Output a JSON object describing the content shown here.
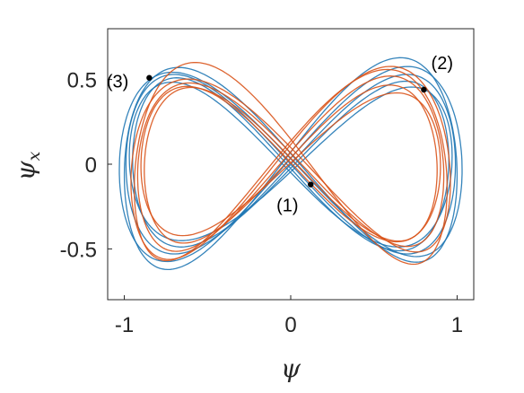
{
  "chart_data": {
    "type": "line",
    "title": "",
    "xlabel": "ψ",
    "ylabel": {
      "main": "ψ",
      "sub": "x"
    },
    "xlim": [
      -1.1,
      1.1
    ],
    "ylim": [
      -0.8,
      0.8
    ],
    "xticks": [
      {
        "value": -1,
        "label": "-1"
      },
      {
        "value": 0,
        "label": "0"
      },
      {
        "value": 1,
        "label": "1"
      }
    ],
    "yticks": [
      {
        "value": -0.5,
        "label": "-0.5"
      },
      {
        "value": 0,
        "label": "0"
      },
      {
        "value": 0.5,
        "label": "0.5"
      }
    ],
    "grid": false,
    "legend": "none",
    "colors": {
      "blue": "#1f77b4",
      "orange": "#d95319",
      "axes": "#262626",
      "marker": "#000000"
    },
    "series": [
      {
        "color": "blue",
        "loops": [
          {
            "cx": 0,
            "r": 0.99,
            "rx": 0.53,
            "phase": 0.0,
            "gain": 0.0
          },
          {
            "cx": 0,
            "r": 1.03,
            "rx": 0.56,
            "phase": 0.15,
            "gain": 0.04
          },
          {
            "cx": 0,
            "r": 0.95,
            "rx": 0.5,
            "phase": -0.12,
            "gain": -0.03
          },
          {
            "cx": 0,
            "r": 1.0,
            "rx": 0.6,
            "phase": 0.28,
            "gain": 0.06
          },
          {
            "cx": 0,
            "r": 0.97,
            "rx": 0.47,
            "phase": -0.25,
            "gain": -0.05
          }
        ]
      },
      {
        "color": "orange",
        "loops": [
          {
            "cx": 0,
            "r": 0.92,
            "rx": 0.5,
            "phase": 0.35,
            "gain": 0.05
          },
          {
            "cx": 0,
            "r": 0.96,
            "rx": 0.54,
            "phase": 0.5,
            "gain": 0.08
          },
          {
            "cx": 0,
            "r": 0.88,
            "rx": 0.46,
            "phase": 0.2,
            "gain": 0.02
          },
          {
            "cx": 0,
            "r": 0.94,
            "rx": 0.58,
            "phase": 0.62,
            "gain": -0.04
          },
          {
            "cx": 0,
            "r": 0.9,
            "rx": 0.44,
            "phase": 0.05,
            "gain": -0.06
          }
        ]
      }
    ],
    "annotations": [
      {
        "label": "(1)",
        "x": 0.12,
        "y": -0.12,
        "label_dx": -0.14,
        "label_dy": -0.12
      },
      {
        "label": "(2)",
        "x": 0.8,
        "y": 0.44,
        "label_dx": 0.11,
        "label_dy": 0.16
      },
      {
        "label": "(3)",
        "x": -0.85,
        "y": 0.51,
        "label_dx": -0.19,
        "label_dy": -0.02
      }
    ]
  }
}
